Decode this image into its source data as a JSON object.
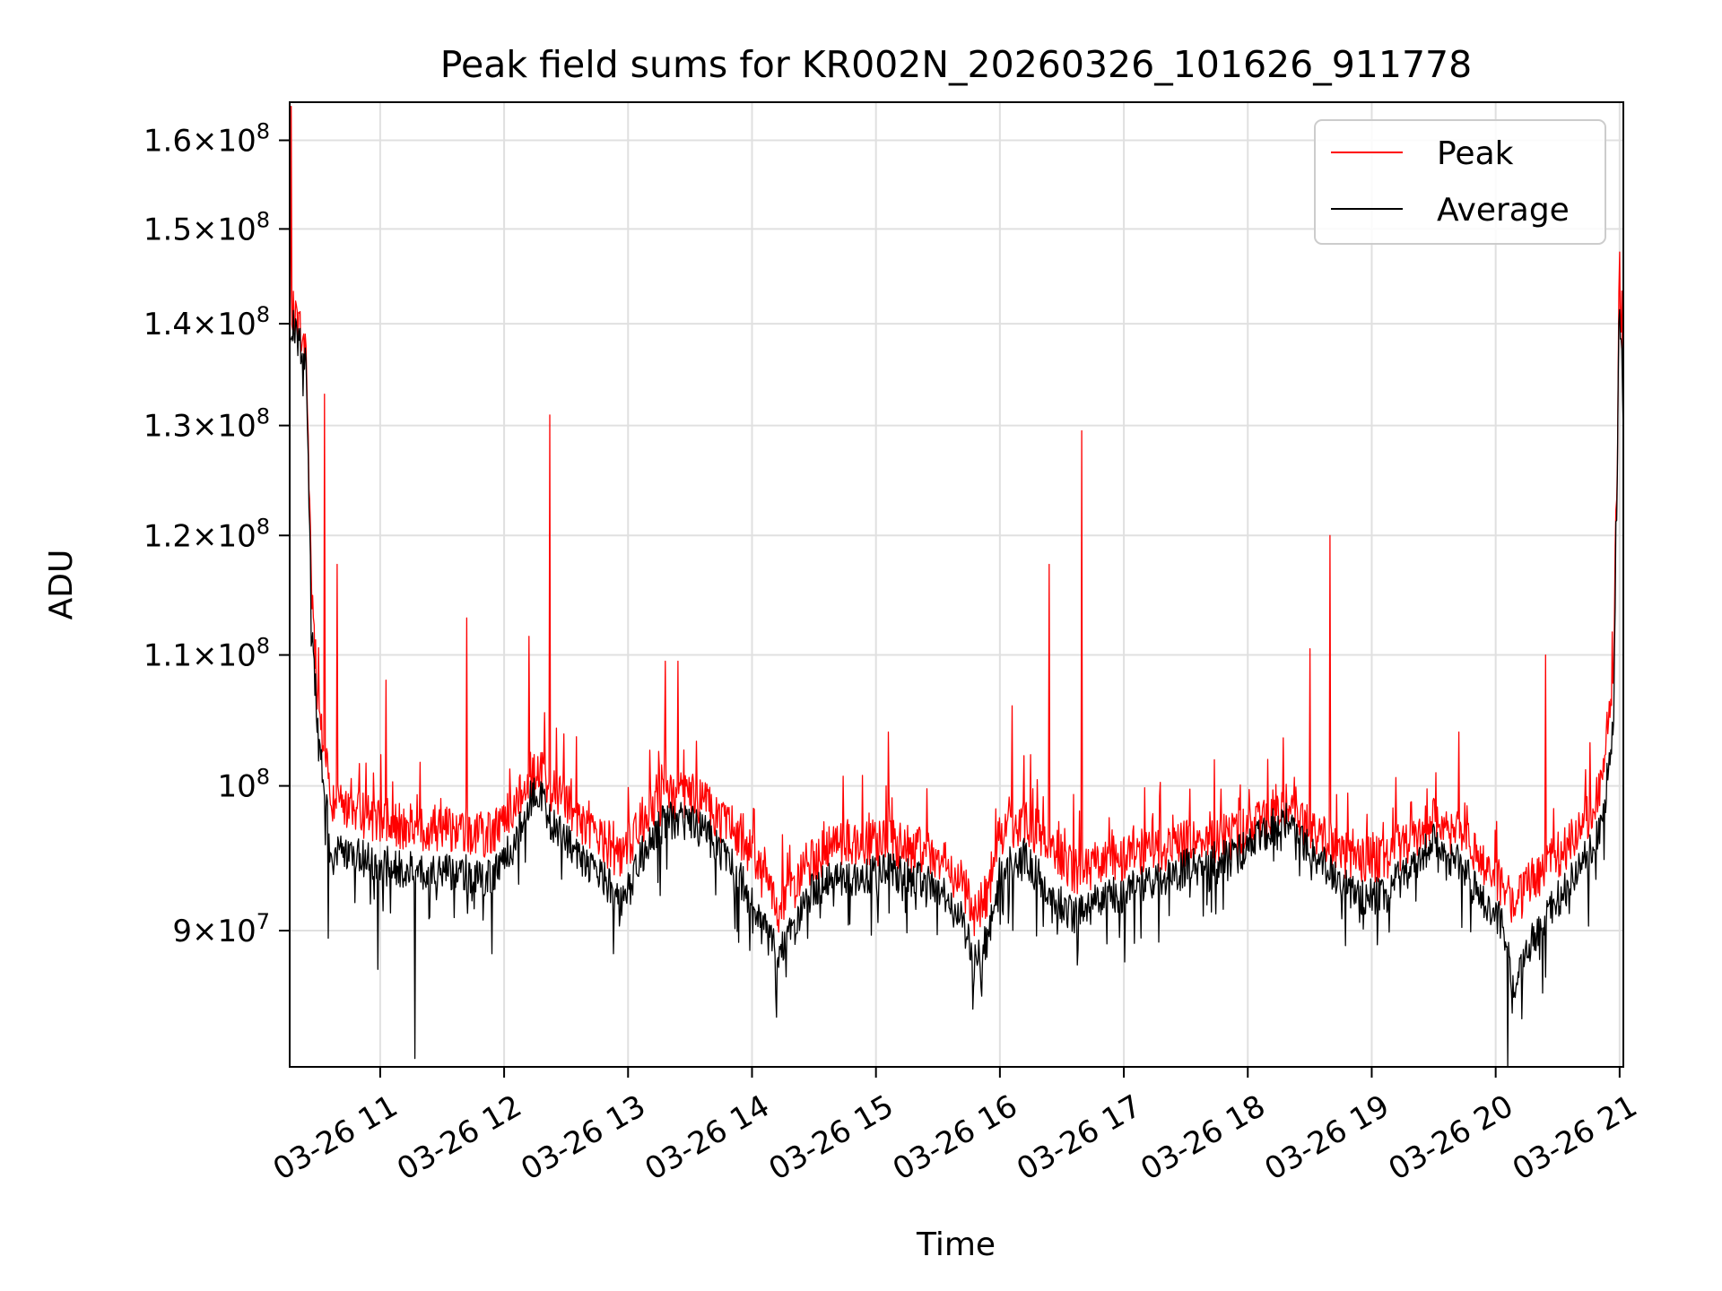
{
  "chart_data": {
    "type": "line",
    "title": "Peak field sums for KR002N_20260326_101626_911778",
    "xlabel": "Time",
    "ylabel": "ADU",
    "yscale": "log",
    "ylim": [
      81500000,
      164500000
    ],
    "xlim_hours": [
      10.27,
      21.03
    ],
    "grid": true,
    "legend_position": "top-right",
    "x_ticks": [
      {
        "hour": 11,
        "label": "03-26 11"
      },
      {
        "hour": 12,
        "label": "03-26 12"
      },
      {
        "hour": 13,
        "label": "03-26 13"
      },
      {
        "hour": 14,
        "label": "03-26 14"
      },
      {
        "hour": 15,
        "label": "03-26 15"
      },
      {
        "hour": 16,
        "label": "03-26 16"
      },
      {
        "hour": 17,
        "label": "03-26 17"
      },
      {
        "hour": 18,
        "label": "03-26 18"
      },
      {
        "hour": 19,
        "label": "03-26 19"
      },
      {
        "hour": 20,
        "label": "03-26 20"
      },
      {
        "hour": 21,
        "label": "03-26 21"
      }
    ],
    "y_ticks": [
      {
        "value": 90000000,
        "mantissa": "9",
        "exponent": "7"
      },
      {
        "value": 100000000,
        "mantissa": "",
        "exponent": "8"
      },
      {
        "value": 110000000,
        "mantissa": "1.1",
        "exponent": "8"
      },
      {
        "value": 120000000,
        "mantissa": "1.2",
        "exponent": "8"
      },
      {
        "value": 130000000,
        "mantissa": "1.3",
        "exponent": "8"
      },
      {
        "value": 140000000,
        "mantissa": "1.4",
        "exponent": "8"
      },
      {
        "value": 150000000,
        "mantissa": "1.5",
        "exponent": "8"
      },
      {
        "value": 160000000,
        "mantissa": "1.6",
        "exponent": "8"
      }
    ],
    "series": [
      {
        "name": "Peak",
        "color": "#ff0000",
        "baseline": {
          "x": [
            10.27,
            10.3,
            10.4,
            10.45,
            10.5,
            10.6,
            10.8,
            11.0,
            11.3,
            11.6,
            11.9,
            12.1,
            12.25,
            12.4,
            12.6,
            12.8,
            12.95,
            13.1,
            13.3,
            13.5,
            13.7,
            13.9,
            14.1,
            14.2,
            14.3,
            14.5,
            14.8,
            15.1,
            15.3,
            15.5,
            15.7,
            15.8,
            15.9,
            16.0,
            16.2,
            16.4,
            16.6,
            16.8,
            17.0,
            17.3,
            17.6,
            17.9,
            18.1,
            18.3,
            18.5,
            18.7,
            18.9,
            19.1,
            19.3,
            19.5,
            19.7,
            19.9,
            20.05,
            20.15,
            20.3,
            20.5,
            20.7,
            20.85,
            20.95,
            21.0,
            21.03
          ],
          "y": [
            140000000,
            141000000,
            137000000,
            115000000,
            106000000,
            99000000,
            98000000,
            97500000,
            97000000,
            97000000,
            96500000,
            98500000,
            101500000,
            99500000,
            97500000,
            96000000,
            94500000,
            97500000,
            99000000,
            99500000,
            98000000,
            96500000,
            93500000,
            91000000,
            92500000,
            95000000,
            96000000,
            96000000,
            95500000,
            95000000,
            93000000,
            91000000,
            92500000,
            96500000,
            97500000,
            96000000,
            94000000,
            94500000,
            95000000,
            95500000,
            96000000,
            96500000,
            97500000,
            98500000,
            97000000,
            95500000,
            94500000,
            95000000,
            96000000,
            97500000,
            96500000,
            94500000,
            93000000,
            91500000,
            93500000,
            95000000,
            97000000,
            100000000,
            108000000,
            140000000,
            133000000
          ]
        },
        "spikes": [
          {
            "x": 10.28,
            "y": 164000000
          },
          {
            "x": 10.55,
            "y": 133000000
          },
          {
            "x": 10.65,
            "y": 117500000
          },
          {
            "x": 11.05,
            "y": 108000000
          },
          {
            "x": 11.7,
            "y": 113000000
          },
          {
            "x": 12.2,
            "y": 111500000
          },
          {
            "x": 12.37,
            "y": 131000000
          },
          {
            "x": 13.3,
            "y": 109500000
          },
          {
            "x": 13.4,
            "y": 109500000
          },
          {
            "x": 15.1,
            "y": 104000000
          },
          {
            "x": 16.1,
            "y": 106000000
          },
          {
            "x": 16.4,
            "y": 117500000
          },
          {
            "x": 16.66,
            "y": 129500000
          },
          {
            "x": 18.5,
            "y": 110500000
          },
          {
            "x": 18.66,
            "y": 120000000
          },
          {
            "x": 19.7,
            "y": 104000000
          },
          {
            "x": 20.4,
            "y": 110000000
          },
          {
            "x": 21.0,
            "y": 147500000
          }
        ]
      },
      {
        "name": "Average",
        "color": "#000000",
        "baseline": {
          "x": [
            10.27,
            10.3,
            10.4,
            10.45,
            10.5,
            10.6,
            10.8,
            11.0,
            11.3,
            11.6,
            11.9,
            12.1,
            12.25,
            12.4,
            12.6,
            12.8,
            12.95,
            13.1,
            13.3,
            13.5,
            13.7,
            13.9,
            14.1,
            14.2,
            14.3,
            14.5,
            14.8,
            15.1,
            15.3,
            15.5,
            15.7,
            15.8,
            15.9,
            16.0,
            16.2,
            16.4,
            16.6,
            16.8,
            17.0,
            17.3,
            17.6,
            17.9,
            18.1,
            18.3,
            18.5,
            18.7,
            18.9,
            19.1,
            19.3,
            19.5,
            19.7,
            19.9,
            20.05,
            20.15,
            20.3,
            20.5,
            20.7,
            20.85,
            20.95,
            21.0,
            21.03
          ],
          "y": [
            139000000,
            139500000,
            136000000,
            112000000,
            104000000,
            95500000,
            95000000,
            94500000,
            94000000,
            94000000,
            93500000,
            96000000,
            100000000,
            97000000,
            95000000,
            93500000,
            91500000,
            95000000,
            97500000,
            97500000,
            96000000,
            93500000,
            90000000,
            88500000,
            89500000,
            93000000,
            93500000,
            94000000,
            93500000,
            93000000,
            90500000,
            88000000,
            89500000,
            94000000,
            95000000,
            92500000,
            91000000,
            92000000,
            92500000,
            93500000,
            94500000,
            95000000,
            96500000,
            97500000,
            95500000,
            93500000,
            92000000,
            92500000,
            94000000,
            96000000,
            94500000,
            92000000,
            90500000,
            86000000,
            89500000,
            92000000,
            94500000,
            97000000,
            104000000,
            144000000,
            130000000
          ]
        },
        "dips": [
          {
            "x": 10.58,
            "y": 89500000
          },
          {
            "x": 10.98,
            "y": 87500000
          },
          {
            "x": 11.28,
            "y": 82000000
          },
          {
            "x": 11.9,
            "y": 88500000
          },
          {
            "x": 12.88,
            "y": 88500000
          },
          {
            "x": 14.2,
            "y": 84500000
          },
          {
            "x": 15.78,
            "y": 85000000
          },
          {
            "x": 20.1,
            "y": 81500000
          },
          {
            "x": 20.38,
            "y": 86000000
          }
        ]
      }
    ]
  }
}
